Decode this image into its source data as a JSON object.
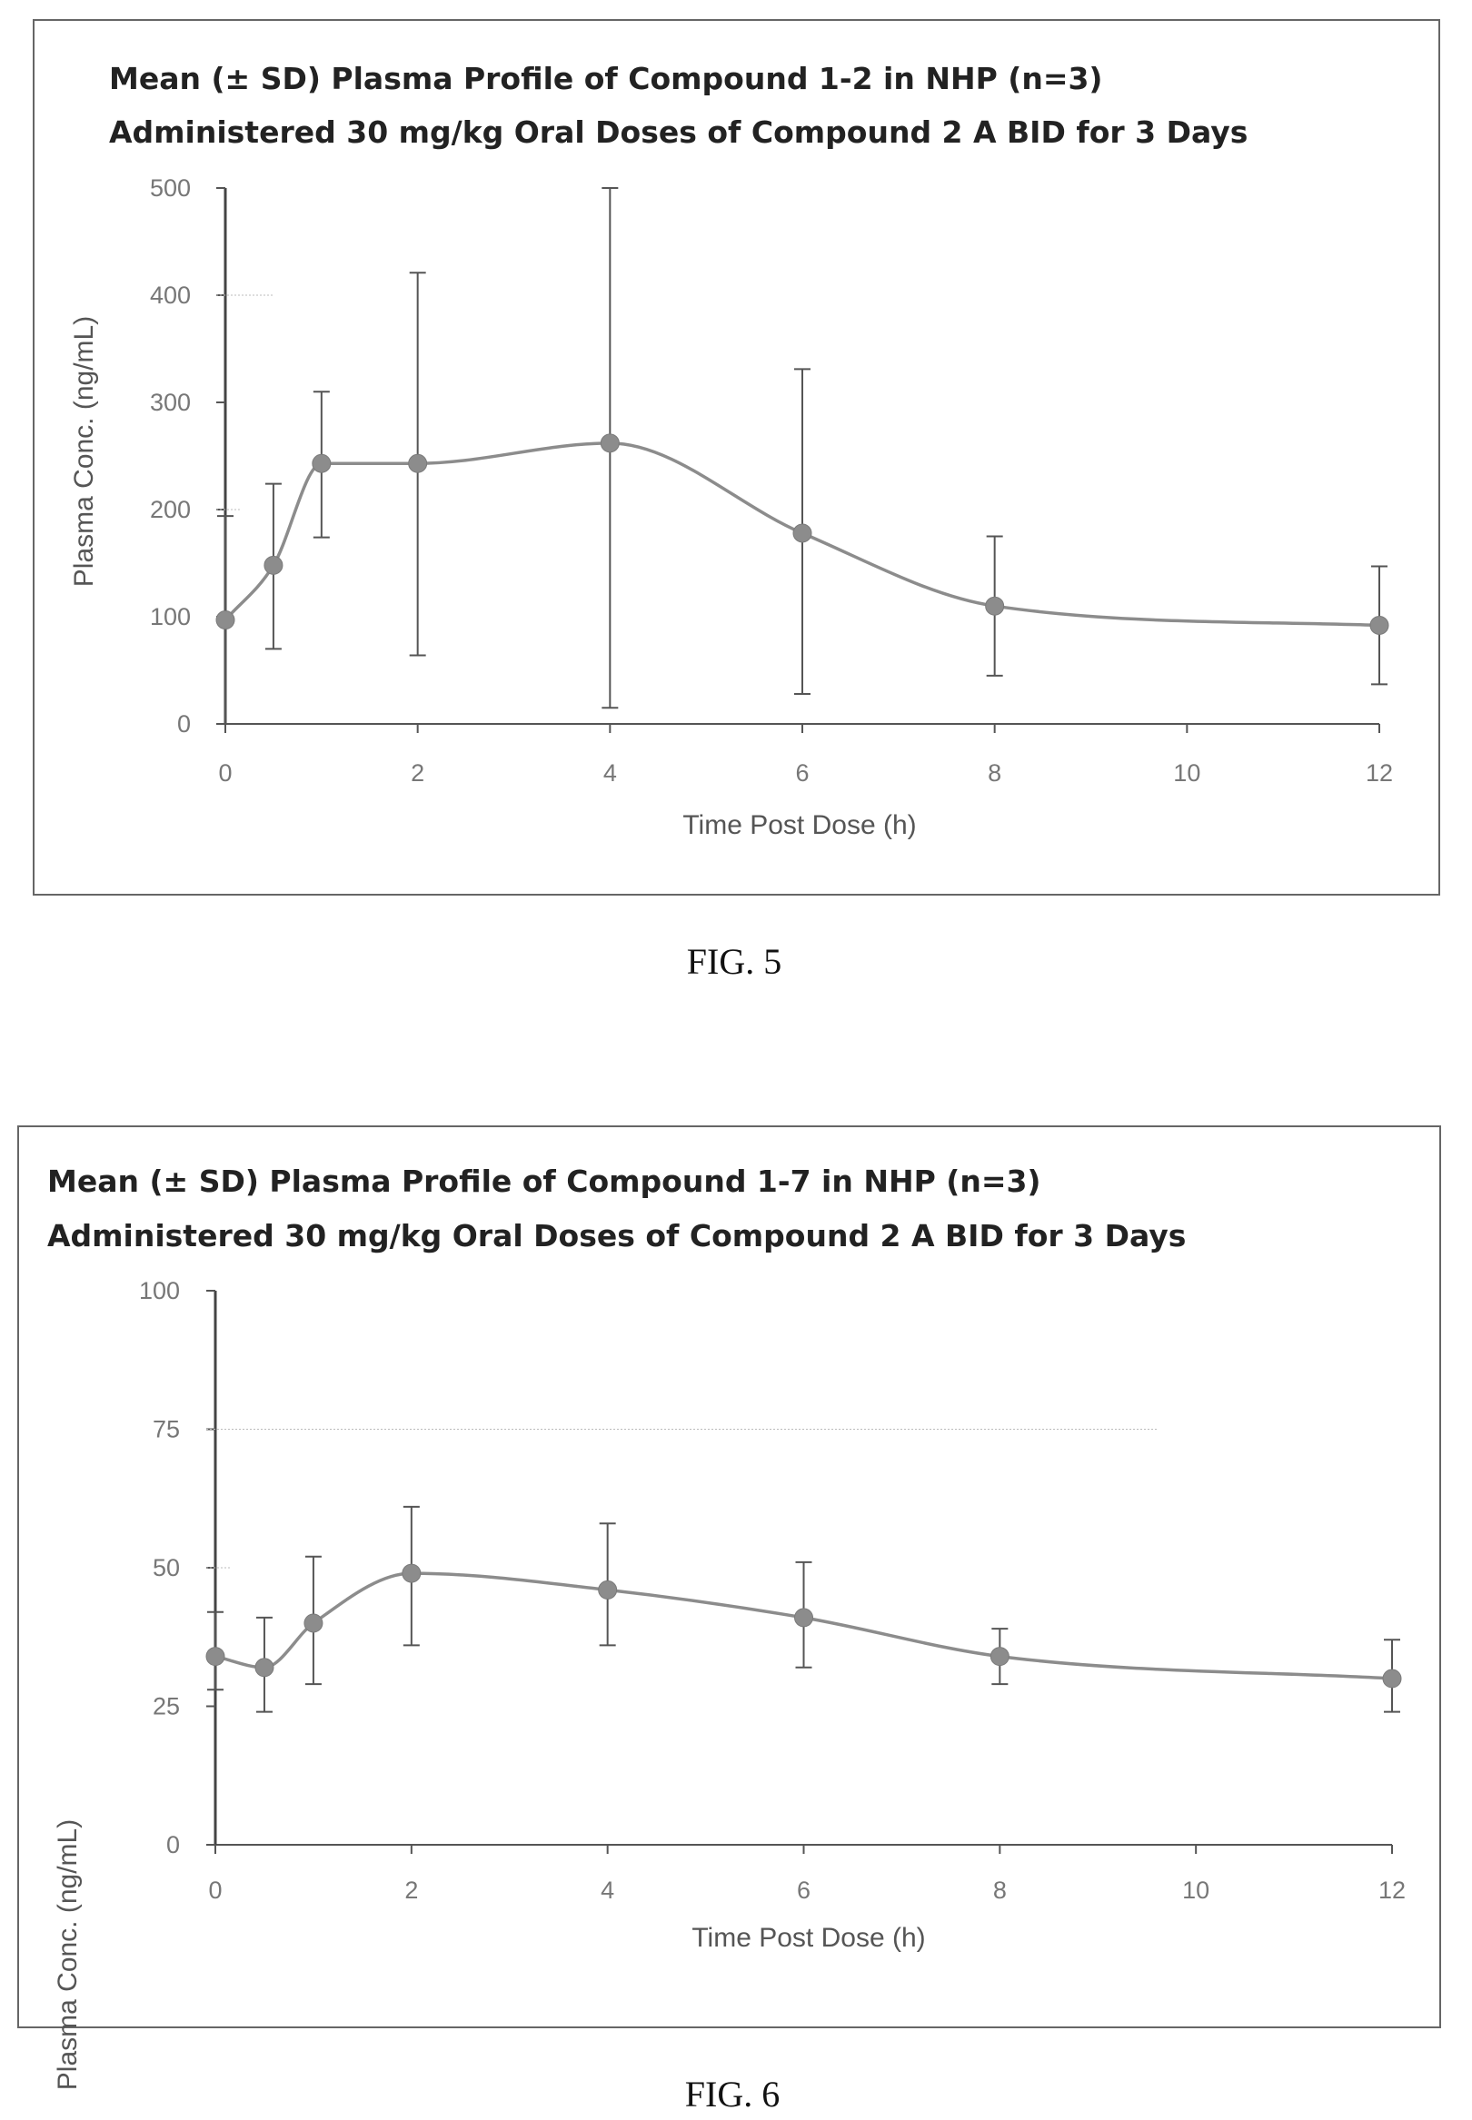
{
  "figures": [
    {
      "caption": "FIG. 5",
      "chart_data": {
        "type": "line",
        "title": "Mean (± SD) Plasma Profile of Compound 1-2 in NHP (n=3)",
        "subtitle": "Administered 30 mg/kg Oral Doses of Compound 2 A  BID for 3 Days",
        "xlabel": "Time Post Dose (h)",
        "ylabel": "Plasma Conc. (ng/mL)",
        "xlim": [
          0,
          12
        ],
        "ylim": [
          0,
          500
        ],
        "xticks": [
          0,
          2,
          4,
          6,
          8,
          10,
          12
        ],
        "yticks": [
          0,
          100,
          200,
          300,
          400,
          500
        ],
        "grid": false,
        "x": [
          0,
          0.5,
          1,
          2,
          4,
          6,
          8,
          12
        ],
        "y": [
          97,
          148,
          243,
          243,
          262,
          178,
          110,
          92
        ],
        "err_low": [
          97,
          78,
          69,
          179,
          247,
          150,
          65,
          55
        ],
        "err_high": [
          97,
          76,
          67,
          178,
          238,
          153,
          65,
          55
        ],
        "marker_color": "#8c8c8c",
        "line_color": "#8c8c8c"
      }
    },
    {
      "caption": "FIG. 6",
      "chart_data": {
        "type": "line",
        "title": "Mean (± SD) Plasma Profile of Compound 1-7 in NHP (n=3)",
        "subtitle": "Administered 30 mg/kg Oral Doses of Compound 2 A  BID for 3 Days",
        "xlabel": "Time Post Dose (h)",
        "ylabel": "Plasma Conc. (ng/mL)",
        "xlim": [
          0,
          12
        ],
        "ylim": [
          0,
          100
        ],
        "xticks": [
          0,
          2,
          4,
          6,
          8,
          10,
          12
        ],
        "yticks": [
          0,
          25,
          50,
          75,
          100
        ],
        "grid": false,
        "x": [
          0,
          0.5,
          1,
          2,
          4,
          6,
          8,
          12
        ],
        "y": [
          34,
          32,
          40,
          49,
          46,
          41,
          34,
          30
        ],
        "err_low": [
          6,
          8,
          11,
          13,
          10,
          9,
          5,
          6
        ],
        "err_high": [
          8,
          9,
          12,
          12,
          12,
          10,
          5,
          7
        ],
        "marker_color": "#8c8c8c",
        "line_color": "#8c8c8c"
      }
    }
  ]
}
